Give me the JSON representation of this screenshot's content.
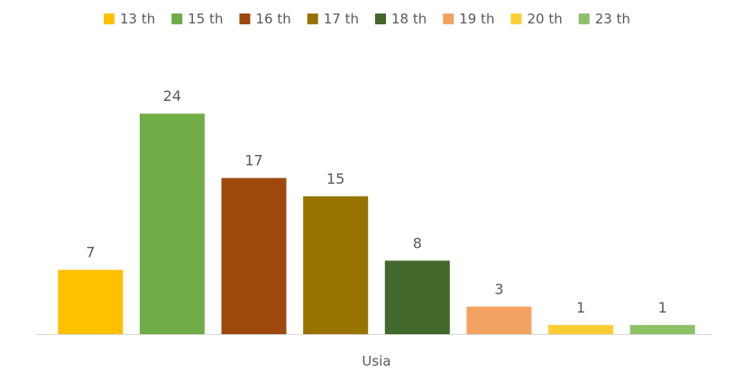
{
  "chart_data": {
    "type": "bar",
    "categories": [
      "Usia"
    ],
    "series": [
      {
        "name": "13 th",
        "values": [
          7
        ],
        "color": "#FFC000"
      },
      {
        "name": "15 th",
        "values": [
          24
        ],
        "color": "#70AD47"
      },
      {
        "name": "16 th",
        "values": [
          17
        ],
        "color": "#9E480E"
      },
      {
        "name": "17 th",
        "values": [
          15
        ],
        "color": "#997300"
      },
      {
        "name": "18 th",
        "values": [
          8
        ],
        "color": "#43682B"
      },
      {
        "name": "19 th",
        "values": [
          3
        ],
        "color": "#F4A261"
      },
      {
        "name": "20 th",
        "values": [
          1
        ],
        "color": "#FFCD33"
      },
      {
        "name": "23 th",
        "values": [
          1
        ],
        "color": "#8CC168"
      }
    ],
    "data_labels": true,
    "legend_position": "top",
    "ylim": [
      0,
      27
    ],
    "grid": false
  }
}
